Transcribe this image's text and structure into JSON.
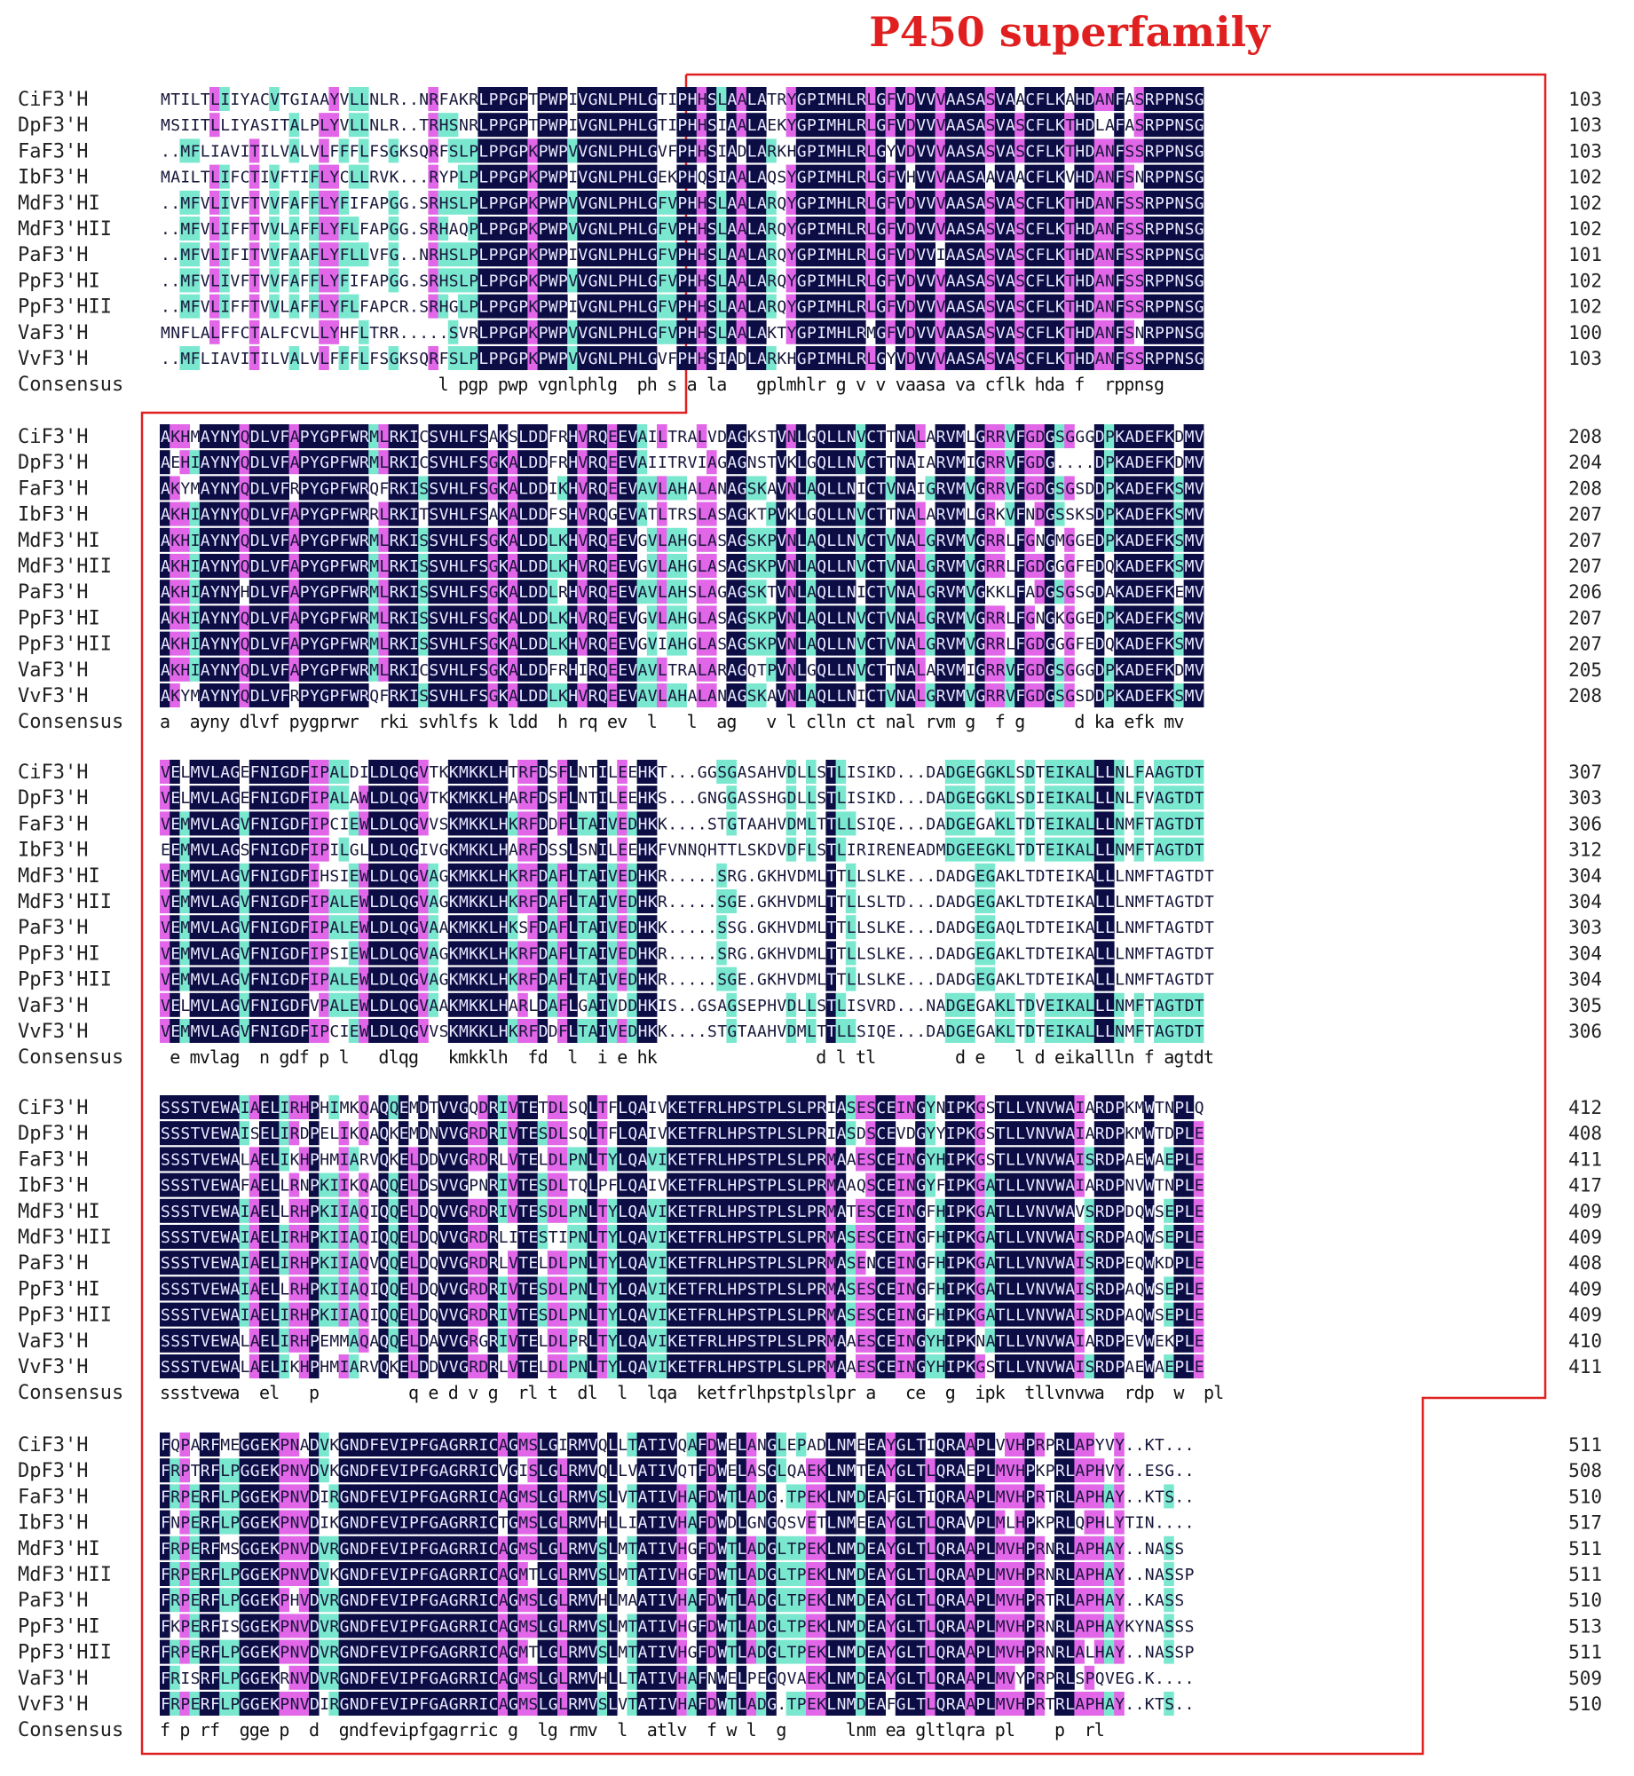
{
  "title": "P450 superfamily",
  "consensus_label": "Consensus",
  "colors": {
    "identical": "#0d0d45",
    "high": "#e266e8",
    "medium": "#7ae8cf",
    "text_dark_bg": "#e9e9ff",
    "text_light_bg": "#16163a",
    "frame": "#e02020"
  },
  "blocks": [
    {
      "rows": [
        {
          "name": "CiF3'H",
          "seq": "MTILTLIIYACVTGIAAYVLLNLR..NRFAKRLPPGPTPWPIVGNLPHLGTIPHHSLAALATRYGPIMHLRLGFVDVVVAASASVAACFLKAHDANFASRPPNSG",
          "end": "103"
        },
        {
          "name": "DpF3'H",
          "seq": "MSIITLLIYASITALPLYVLLNLR..TRHSNRLPPGPTPWPIVGNLPHLGTIPHHSIAALAEKYGPIMHLRLGFVDVVVAASASVASCFLKTHDLAFASRPPNSG",
          "end": "103"
        },
        {
          "name": "FaF3'H",
          "seq": "..MFLIAVITILVALVLFFFLFSGKSQRFSLPLPPGPKPWPVVGNLPHLGVFPHHSIADLARKHGPIMHLRLGYVDVVVAASASVASCFLKTHDANFSSRPPNSG",
          "end": "103"
        },
        {
          "name": "IbF3'H",
          "seq": "MAILTLIFCTIVFTIFLYCLLRVK...RYPLPLPPGPKPWPIVGNLPHLGEKPHQSIAALAQSYGPIMHLRLGFVHVVVAASAAVAACFLKVHDANFSNRPPNSG",
          "end": "102"
        },
        {
          "name": "MdF3'HI",
          "seq": "..MFVLIVFTVVFAFFLYFIFAPGG.SRHSLPLPPGPKPWPVVGNLPHLGFVPHHSLAALARQYGPIMHLRLGFVDVVVAASASVASCFLKTHDANFSSRPPNSG",
          "end": "102"
        },
        {
          "name": "MdF3'HII",
          "seq": "..MFVLIFFTVVLAFFLYFLFAPGG.SRHAQPLPPGPKPWPVVGNLPHLGFVPHHSLAALARQYGPIMHLRLGFVDVVVAASASVASCFLKTHDANFSSRPPNSG",
          "end": "102"
        },
        {
          "name": "PaF3'H",
          "seq": "..MFVLIFITVVFAAFLYFLLVFG..NRHSLPLPPGPKPWPIVGNLPHLGFVPHHSLAALARQYGPIMHLRLGFVDVVIAASASVASCFLKTHDANFSSRPPNSG",
          "end": "101"
        },
        {
          "name": "PpF3'HI",
          "seq": "..MFVLIVFTVVFAFFLYFIFAPGG.SRHSLPLPPGPKPWPVVGNLPHLGFVPHHSLAALARQYGPIMHLRLGFVDVVVAASASVASCFLKTHDANFSSRPPNSG",
          "end": "102"
        },
        {
          "name": "PpF3'HII",
          "seq": "..MFVLIFFTVVLAFFLYFLFAPCR.SRHGLPLPPGPKPWPIVGNLPHLGFVPHHSLAALARQYGPIMHLRLGFVDVVVAASASVASCFLKTHDANFSSRPPNSG",
          "end": "102"
        },
        {
          "name": "VaF3'H",
          "seq": "MNFLALFFCTALFCVLLYHFLTRR.....SVRLPPGPKPWPVVGNLPHLGFVPHHSLAALAKTYGPIMHLRMGFVDVVVAASASVASCFLKTHDANFSNRPPNSG",
          "end": "100"
        },
        {
          "name": "VvF3'H",
          "seq": "..MFLIAVITILVALVLFFFLFSGKSQRFSLPLPPGPKPWPVVGNLPHLGVFPHHSIADLARKHGPIMHLRLGYVDVVVAASASVASCFLKTHDANFSSRPPNSG",
          "end": "103"
        }
      ],
      "consensus": "                            l pgp pwp vgnlphlg  ph s a la   gplmhlr g v v vaasa va cflk hda f  rppnsg"
    },
    {
      "rows": [
        {
          "name": "CiF3'H",
          "seq": "AKHMAYNYQDLVFAPYGPFWRMLRKICSVHLFSAKSLDDFRHVRQEEVAILTRALVDAGKSTVNLGQLLNVCTTNALARVMLGRRVFGDGSGGGDPKADEFKDMV",
          "end": "208"
        },
        {
          "name": "DpF3'H",
          "seq": "AEHIAYNYQDLVFAPYGPFWRMLRKICSVHLFSGKALDDFRHVRQEEVAIITRVIAGAGNSTVKLGQLLNVCTTNAIARVMIGRRVFGDG....DPKADEFKDMV",
          "end": "204"
        },
        {
          "name": "FaF3'H",
          "seq": "AKYMAYNYQDLVFRPYGPFWRQFRKISSVHLFSGKALDDIKHVRQEEVAVLAHALANAGSKAVNLAQLLNICTVNAIGRVMVGRRVFGDGSGSDDPKADEFKSMV",
          "end": "208"
        },
        {
          "name": "IbF3'H",
          "seq": "AKHIAYNYQDLVFAPYGPFWRRLRKITSVHLFSAKALDDFSHVRQGEVATLTRSLASAGKTPVKLGQLLNVCTTNALARVMLGRKVFNDGSSKSDPKADEFKSMV",
          "end": "207"
        },
        {
          "name": "MdF3'HI",
          "seq": "AKHIAYNYQDLVFAPYGPFWRMLRKISSVHLFSGKALDDLKHVRQEEVGVLAHGLASAGSKPVNLAQLLNVCTVNALGRVMVGRRLFGNGMGGEDPKADEFKSMV",
          "end": "207"
        },
        {
          "name": "MdF3'HII",
          "seq": "AKHIAYNYQDLVFAPYGPFWRMLRKISSVHLFSGKALDDLKHVRQEEVGVLAHGLASAGSKPVNLAQLLNVCTVNALGRVMVGRRLFGDGGGFEDQKADEFKSMV",
          "end": "207"
        },
        {
          "name": "PaF3'H",
          "seq": "AKHIAYNYHDLVFAPYGPFWRMLRKISSVHLFSGKALDDLRHVRQEEVAVLAHSLAGAGSKTVNLAQLLNICTVNALGRVMVGKKLFADGSGSGDAKADEFKEMV",
          "end": "206"
        },
        {
          "name": "PpF3'HI",
          "seq": "AKHIAYNYQDLVFAPYGPFWRMLRKISSVHLFSGKALDDLKHVRQEEVGVLAHGLASAGSKPVNLAQLLNVCTVNALGRVMVGRRLFGNGKGGEDPKADEFKSMV",
          "end": "207"
        },
        {
          "name": "PpF3'HII",
          "seq": "AKHIAYNYQDLVFAPYGPFWRMLRKISSVHLFSGKALDDLKHVRQEEVGVIAHGLASAGSKPVNLAQLLNVCTVNALGRVMVGRRLFGDGGGFEDQKADEFKSMV",
          "end": "207"
        },
        {
          "name": "VaF3'H",
          "seq": "AKHIAYNYQDLVFAPYGPFWRMLRKICSVHLFSGKALDDFRHIRQEEVAVLTRALARAGQTPVNLGQLLNVCTTNALARVMIGRRVFGDGSGGGDPKADEFKDMV",
          "end": "205"
        },
        {
          "name": "VvF3'H",
          "seq": "AKYMAYNYQDLVFRPYGPFWRQFRKISSVHLFSGKALDDLKHVRQEEVAVLAHALANAGSKAVNLAQLLNICTVNALGRVMVGRRVFGDGSGSDDPKADEFKSMV",
          "end": "208"
        }
      ],
      "consensus": "a  ayny dlvf pygprwr  rki svhlfs k ldd  h rq ev  l   l  ag   v l clln ct nal rvm g  f g     d ka efk mv"
    },
    {
      "rows": [
        {
          "name": "CiF3'H",
          "seq": "VELMVLAGEFNIGDFIPALDILDLQGVTKKMKKLHTRFDSFLNTILEEHKT...GGSGASAHVDLLSTLISIKD...DADGEGGKLSDTEIKALLLNLFAAGTDT",
          "end": "307"
        },
        {
          "name": "DpF3'H",
          "seq": "VELMVLAGEFNIGDFIPALAWLDLQGVTKKMKKLHARFDSFLNTILEEHKS...GNGGASSHGDLLSTLISIKD...DADGEGGKLSDIEIKALLLNLFVAGTDT",
          "end": "303"
        },
        {
          "name": "FaF3'H",
          "seq": "VEMMVLAGVFNIGDFIPCIEWLDLQGVVSKMKKLHKRFDDFLTAIVEDHKK....STGTAAHVDMLTTLLSIQE...DADGEGAKLTDTEIKALLLNMFTAGTDT",
          "end": "306"
        },
        {
          "name": "IbF3'H",
          "seq": "EEMMVLAGSFNIGDFIPILGLLDLQGIVGKMKKLHARFDSSLSNILEEHKFVNNQHTTLSKDVDFLSTLIRIRENEADMDGEEGKLTDTEIKALLLNMFTAGTDT",
          "end": "312"
        },
        {
          "name": "MdF3'HI",
          "seq": "VEMMVLAGVFNIGDFIHSIEWLDLQGVAGKMKKLHKRFDAFLTAIVEDHKR.....SRG.GKHVDMLTTLLSLKE...DADGEGAKLTDTEIKALLLNMFTAGTDT",
          "end": "304"
        },
        {
          "name": "MdF3'HII",
          "seq": "VEMMVLAGVFNIGDFIPALEWLDLQGVAGKMKKLHKRFDAFLTAIVEDHKR.....SGE.GKHVDMLTTLLSLTD...DADGEGAKLTDTEIKALLLNMFTAGTDT",
          "end": "304"
        },
        {
          "name": "PaF3'H",
          "seq": "VEMMVLAGVFNIGDFIPALEWLDLQGVAAKMKKLHKSFDAFLTAIVEDHKK.....SSG.GKHVDMLTTLLSLKE...DADGEGAQLTDTEIKALLLNMFTAGTDT",
          "end": "303"
        },
        {
          "name": "PpF3'HI",
          "seq": "VEMMVLAGVFNIGDFIPSIEWLDLQGVAGKMKKLHKRFDAFLTAIVEDHKR.....SRG.GKHVDMLTTLLSLKE...DADGEGAKLTDTEIKALLLNMFTAGTDT",
          "end": "304"
        },
        {
          "name": "PpF3'HII",
          "seq": "VEMMVLAGVFNIGDFIPALEWLDLQGVAGKMKKLHKRFDAFLTAIVEDHKR.....SGE.GKHVDMLTTLLSLKE...DADGEGAKLTDTEIKALLLNMFTAGTDT",
          "end": "304"
        },
        {
          "name": "VaF3'H",
          "seq": "VELMVLAGVFNIGDFVPALEWLDLQGVAAKMKKLHARLDAFLGAIVDDHKIS..GSAGSEPHVDLLSTLISVRD...NADGEGAKLTDVEIKALLLNMFTAGTDT",
          "end": "305"
        },
        {
          "name": "VvF3'H",
          "seq": "VEMMVLAGVFNIGDFIPCIEWLDLQGVVSKMKKLHKRFDDFLTAIVEDHKK....STGTAAHVDMLTTLLSIQE...DADGEGAKLTDTEIKALLLNMFTAGTDT",
          "end": "306"
        }
      ],
      "consensus": " e mvlag  n gdf p l   dlqg   kmkklh  fd  l  i e hk                d l tl        d e   l d eikallln f agtdt"
    },
    {
      "rows": [
        {
          "name": "CiF3'H",
          "seq": "SSSTVEWAIAELIRHPHIMKQAQQEMDTVVGQDRIVTETDLSQLTFLQAIVKETFRLHPSTPLSLPRIASESCEINGYNIPKGSTLLVNVWAIARDPKMWTNPLQ",
          "end": "412"
        },
        {
          "name": "DpF3'H",
          "seq": "SSSTVEWAISELIRDPELIKQAQKEMDNVVGRDRIVTESDLSQLTFLQAIVKETFRLHPSTPLSLPRIASDSCEVDGYYIPKGSTLLVNVWAIARDPKMWTDPLE",
          "end": "408"
        },
        {
          "name": "FaF3'H",
          "seq": "SSSTVEWALAELIKHPHMIARVQKELDDVVGRDRLVTELDLPNLTYLQAVIKETFRLHPSTPLSLPRMAAESCEINGYHIPKGSTLLVNVWAISRDPAEWAEPLE",
          "end": "411"
        },
        {
          "name": "IbF3'H",
          "seq": "SSSTVEWAFAELLRNPKIIKQAQQELDSVVGPNRIVTESDLTQLPFLQAIVKETFRLHPSTPLSLPRMAAQSCEINGYFIPKGATLLVNVWAIARDPNVWTNPLE",
          "end": "417"
        },
        {
          "name": "MdF3'HI",
          "seq": "SSSTVEWAIAELLRHPKIIAQIQQELDQVVGRDRIVTESDLPNLTYLQAVIKETFRLHPSTPLSLPRMATESCEINGFHIPKGATLLVNVWAVSRDPDQWSEPLE",
          "end": "409"
        },
        {
          "name": "MdF3'HII",
          "seq": "SSSTVEWAIAELIRHPKIIAQIQQELDQVVGRDRLITESTIPNLTYLQAVIKETFRLHPSTPLSLPRMASESCEINGFHIPKGATLLVNVWAISRDPAQWSEPLE",
          "end": "409"
        },
        {
          "name": "PaF3'H",
          "seq": "SSSTVEWAIAELIRHPKIIAQVQQELDQVVGRDRLVTELDLPNLTYLQAVIKETFRLHPSTPLSLPRMASENCEINGFHIPKGATLLVNVWAISRDPEQWKDPLE",
          "end": "408"
        },
        {
          "name": "PpF3'HI",
          "seq": "SSSTVEWAIAELLRHPKIIAQIQQELDQVVGRDRIVTESDLPNLTYLQAVIKETFRLHPSTPLSLPRMASESCEINGFHIPKGATLLVNVWAISRDPAQWSEPLE",
          "end": "409"
        },
        {
          "name": "PpF3'HII",
          "seq": "SSSTVEWAIAELIRHPKIIAQIQQELDQVVGRDRIVTESDLPNLTYLQAVIKETFRLHPSTPLSLPRMASESCEINGFHIPKGATLLVNVWAISRDPAQWSEPLE",
          "end": "409"
        },
        {
          "name": "VaF3'H",
          "seq": "SSSTVEWALAELIRHPEMMAQAQQELDAVVGRGRIVTELDLPRLTYLQAVIKETFRLHPSTPLSLPRMAAESCEINGYHIPKNATLLVNVWAIARDPEVWEKPLE",
          "end": "410"
        },
        {
          "name": "VvF3'H",
          "seq": "SSSTVEWALAELIKHPHMIARVQKELDDVVGRDRLVTELDLPNLTYLQAVIKETFRLHPSTPLSLPRMAAESCEINGYHIPKGSTLLVNVWAISRDPAEWAEPLE",
          "end": "411"
        }
      ],
      "consensus": "ssstvewa  el   p         q e d v g  rl t  dl  l  lqa  ketfrlhpstplslpr a   ce  g  ipk  tllvnvwa  rdp  w  pl"
    },
    {
      "rows": [
        {
          "name": "CiF3'H",
          "seq": "FQPARFMEGGEKPNADVKGNDFEVIPFGAGRRICAGMSLGIRMVQLLTATIVQAFDWELANGLEPADLNMEEAYGLTIQRAAPLVVHPRPRLAPYVY..KT...",
          "end": "511"
        },
        {
          "name": "DpF3'H",
          "seq": "FRPTRFLPGGEKPNVDVKGNDFEVIPFGAGRRICVGISLGLRMVQLLVATIVQTFDWELASGLQAEKLNMTEAYGLTLQRAEPLMVHPKPRLAPHVY..ESG..",
          "end": "508"
        },
        {
          "name": "FaF3'H",
          "seq": "FRPERFLPGGEKPNVDIRGNDFEVIPFGAGRRICAGMSLGLRMVSLVTATIVHAFDWTLADG.TPEKLNMDEAFGLTIQRAAPLMVHPRTRLAPHAY..KTS..",
          "end": "510"
        },
        {
          "name": "IbF3'H",
          "seq": "FNPERFLPGGEKPNVDIKGNDFEVIPFGAGRRICTGMSLGLRMVHLLIATIVHAFDWDLGNGQSVETLNMEEAYGLTLQRAVPLMLHPKPRLQPHLYTIN....",
          "end": "517"
        },
        {
          "name": "MdF3'HI",
          "seq": "FRPERFMSGGEKPNVDVRGNDFEVIPFGAGRRICAGMSLGLRMVSLMTATIVHGFDWTLADGLTPEKLNMDEAYGLTLQRAAPLMVHPRNRLAPHAY..NASS",
          "end": "511"
        },
        {
          "name": "MdF3'HII",
          "seq": "FRPERFLPGGEKPNVDVKGNDFEVIPFGAGRRICAGMTLGLRMVSLMTATIVHGFDWTLADGLTPEKLNMDEAYGLTLQRAAPLMVHPRNRLAPHAY..NASSP",
          "end": "511"
        },
        {
          "name": "PaF3'H",
          "seq": "FRPERFLPGGEKPHVDVRGNDFEVIPFGAGRRICAGMSLGLRMVHLMAATIVHAFDWTLADGLTPEKLNMDEAYGLTLQRAAPLMVHPRTRLAPHAY..KASS",
          "end": "510"
        },
        {
          "name": "PpF3'HI",
          "seq": "FKPERFISGGEKPNVDVRGNDFEVIPFGAGRRICAGMSLGLRMVSLMTATIVHGFDWTLADGLTPEKLNMDEAYGLTLQRAAPLMVHPRNRLAPHAYKYNASSS",
          "end": "513"
        },
        {
          "name": "PpF3'HII",
          "seq": "FRPERFLPGGEKPNVDVRGNDFEVIPFGAGRRICAGMTLGLRMVSLMTATIVHGFDWTLADGLTPEKLNMDEAYGLTLQRAAPLMVHPRNRLALHAY..NASSP",
          "end": "511"
        },
        {
          "name": "VaF3'H",
          "seq": "FRISRFLPGGEKRNVDVRGNDFEVIPFGAGRRICAGMSLGLRMVHLLTATIVHAFNWELPEGQVAEKLNMDEAYGLTLQRAAPLMVYPRPRLSPQVEG.K....",
          "end": "509"
        },
        {
          "name": "VvF3'H",
          "seq": "FRPERFLPGGEKPNVDIRGNDFEVIPFGAGRRICAGMSLGLRMVSLVTATIVHAFDWTLADG.TPEKLNMDEAFGLTLQRAAPLMVHPRTRLAPHAY..KTS..",
          "end": "510"
        }
      ],
      "consensus": "f p rf  gge p  d  gndfevipfgagrric g  lg rmv  l  atlv  f w l  g      lnm ea gltlqra pl    p  rl"
    }
  ]
}
